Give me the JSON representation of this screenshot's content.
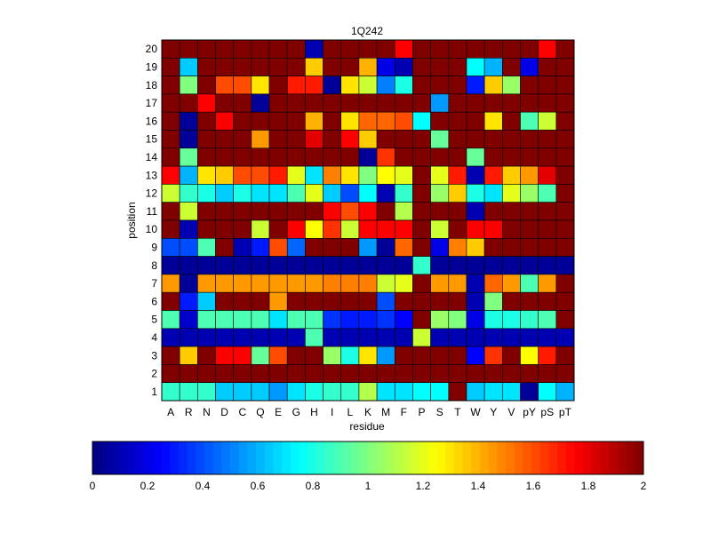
{
  "chart_data": {
    "type": "heatmap",
    "title": "1Q242",
    "xlabel": "residue",
    "ylabel": "position",
    "x_categories": [
      "A",
      "R",
      "N",
      "D",
      "C",
      "Q",
      "E",
      "G",
      "H",
      "I",
      "L",
      "K",
      "M",
      "F",
      "P",
      "S",
      "T",
      "W",
      "Y",
      "V",
      "pY",
      "pS",
      "pT"
    ],
    "y_categories": [
      1,
      2,
      3,
      4,
      5,
      6,
      7,
      8,
      9,
      10,
      11,
      12,
      13,
      14,
      15,
      16,
      17,
      18,
      19,
      20
    ],
    "colormap": "jet",
    "clim": [
      0,
      2
    ],
    "colorbar": {
      "orientation": "horizontal",
      "placement": "bottom",
      "ticks": [
        "0",
        "0.2",
        "0.4",
        "0.6",
        "0.8",
        "1",
        "1.2",
        "1.4",
        "1.6",
        "1.8",
        "2"
      ]
    },
    "grid": true,
    "values_rows_top_is_20": [
      [
        2,
        2,
        2,
        2,
        2,
        2,
        2,
        2,
        0.1,
        2,
        2,
        2,
        2,
        1.75,
        2,
        2,
        2,
        2,
        2,
        2,
        2,
        1.75,
        2
      ],
      [
        2,
        0.65,
        2,
        2,
        2,
        2,
        2,
        2,
        1.35,
        2,
        2,
        1.4,
        0.2,
        0.1,
        2,
        2,
        2,
        0.75,
        0.6,
        2,
        0.2,
        2,
        2
      ],
      [
        2,
        1.0,
        2,
        1.6,
        1.6,
        1.3,
        2,
        1.7,
        1.7,
        0.05,
        1.3,
        1.15,
        0.5,
        0.8,
        2,
        2,
        2,
        0.3,
        1.35,
        1.05,
        2,
        2,
        2
      ],
      [
        2,
        2,
        1.75,
        2,
        2,
        0.05,
        2,
        2,
        2,
        2,
        2,
        2,
        2,
        2,
        2,
        0.55,
        2,
        2,
        2,
        2,
        2,
        2,
        2
      ],
      [
        2,
        0.05,
        2,
        1.75,
        2,
        2,
        2,
        2,
        1.4,
        2,
        1.3,
        1.55,
        1.55,
        1.6,
        0.75,
        2,
        2,
        2,
        1.3,
        2,
        0.9,
        1.15,
        2
      ],
      [
        2,
        0.05,
        2,
        2,
        2,
        1.45,
        2,
        2,
        1.8,
        2,
        1.75,
        1.35,
        2,
        2,
        2,
        0.95,
        2,
        2,
        2,
        2,
        2,
        2,
        2
      ],
      [
        2,
        0.95,
        2,
        2,
        2,
        2,
        2,
        2,
        2,
        2,
        2,
        0.05,
        1.65,
        2,
        2,
        2,
        2,
        0.95,
        2,
        2,
        2,
        2,
        2
      ],
      [
        1.75,
        0.6,
        1.3,
        1.35,
        1.6,
        1.6,
        1.7,
        1.2,
        0.7,
        1.5,
        1.3,
        1.0,
        1.25,
        1.2,
        2,
        1.2,
        1.7,
        0.1,
        1.7,
        1.35,
        1.45,
        1.8,
        2
      ],
      [
        1.15,
        0.85,
        0.8,
        0.65,
        0.8,
        0.7,
        0.7,
        0.9,
        1.2,
        0.65,
        0.4,
        0.75,
        0.1,
        0.85,
        2,
        1.05,
        1.35,
        0.8,
        0.7,
        1.2,
        1.05,
        0.9,
        2
      ],
      [
        2,
        1.15,
        2,
        2,
        2,
        2,
        2,
        2,
        2,
        1.75,
        1.6,
        1.75,
        2,
        1.1,
        2,
        2,
        2,
        0.1,
        2,
        2,
        2,
        2,
        2
      ],
      [
        2,
        0.1,
        2,
        2,
        2,
        1.15,
        2,
        1.75,
        1.25,
        1.65,
        1.15,
        1.75,
        1.75,
        1.75,
        2,
        1.15,
        2,
        1.75,
        1.75,
        2,
        2,
        2,
        2
      ],
      [
        0.4,
        0.4,
        0.9,
        2,
        0.1,
        0.3,
        1.6,
        0.45,
        2,
        2,
        2,
        0.55,
        0.05,
        1.55,
        2,
        0.2,
        1.5,
        1.35,
        2,
        2,
        2,
        2,
        2
      ],
      [
        0.05,
        0.05,
        0.05,
        0.05,
        0.05,
        0.05,
        0.05,
        0.05,
        0.05,
        0.05,
        0.05,
        0.05,
        0.05,
        0.05,
        0.85,
        0.05,
        0.05,
        0.05,
        0.05,
        0.05,
        0.05,
        0.05,
        0.05
      ],
      [
        1.45,
        0.05,
        1.45,
        1.45,
        1.45,
        1.45,
        1.45,
        1.45,
        1.45,
        1.5,
        1.5,
        1.5,
        1.15,
        1.2,
        2,
        1.45,
        1.45,
        0.1,
        1.55,
        1.45,
        0.9,
        1.45,
        2
      ],
      [
        2,
        0.3,
        0.65,
        2,
        2,
        2,
        1.45,
        2,
        2,
        2,
        2,
        2,
        0.4,
        2,
        2,
        2,
        2,
        0.1,
        1.0,
        2,
        2,
        2,
        2
      ],
      [
        0.9,
        0.15,
        0.9,
        0.9,
        0.9,
        0.9,
        0.7,
        0.9,
        0.9,
        0.35,
        0.3,
        0.3,
        0.35,
        0.25,
        2,
        1.05,
        1.0,
        0.2,
        0.8,
        0.8,
        0.85,
        0.9,
        2
      ],
      [
        0.1,
        0.1,
        0.1,
        0.1,
        0.1,
        0.1,
        0.1,
        0.1,
        0.9,
        0.1,
        0.1,
        0.1,
        0.1,
        0.1,
        1.15,
        0.1,
        0.1,
        0.1,
        0.1,
        0.1,
        0.1,
        0.1,
        0.1
      ],
      [
        2,
        1.35,
        2,
        1.75,
        1.75,
        0.95,
        1.6,
        2,
        2,
        1.05,
        0.8,
        1.3,
        0.55,
        2,
        2,
        2,
        2,
        0.25,
        1.65,
        2,
        1.25,
        1.7,
        2
      ],
      [
        2,
        2,
        2,
        2,
        2,
        2,
        2,
        2,
        2,
        2,
        2,
        2,
        2,
        2,
        2,
        2,
        2,
        2,
        2,
        2,
        2,
        2,
        2
      ],
      [
        0.85,
        0.85,
        0.85,
        0.65,
        0.65,
        0.65,
        0.55,
        0.7,
        0.8,
        0.85,
        0.85,
        1.1,
        0.7,
        0.7,
        0.75,
        0.75,
        2,
        0.65,
        0.7,
        0.7,
        0.05,
        0.75,
        0.6
      ]
    ]
  }
}
